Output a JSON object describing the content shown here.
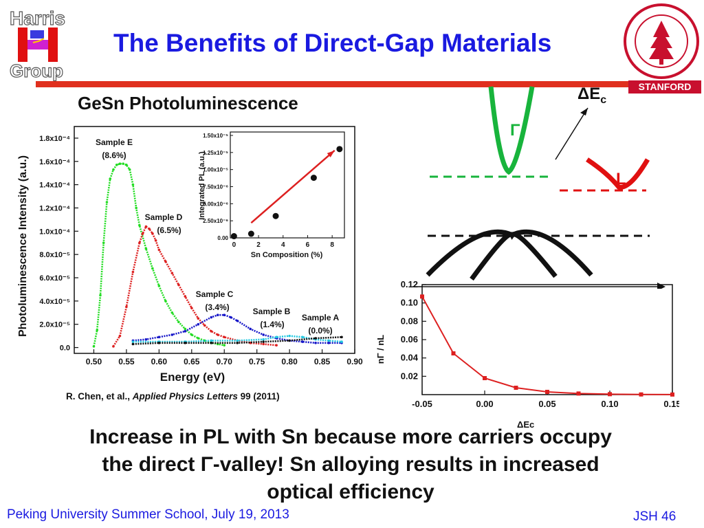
{
  "title": "The Benefits of Direct-Gap Materials",
  "subtitle": "GeSn Photoluminescence",
  "logos": {
    "harris": "Harris Group",
    "stanford_label": "STANFORD"
  },
  "citation": {
    "authors": "R. Chen, et al.,",
    "journal": "Applied Physics Letters",
    "rest": "99 (2011)"
  },
  "band_diagram": {
    "gamma_label": "Γ",
    "l_label": "L",
    "delta_label_main": "ΔE",
    "delta_label_sub": "c"
  },
  "conclusion": {
    "line1": "Increase in PL with Sn because more carriers occupy",
    "line2": "the direct Γ-valley! Sn alloying results in increased",
    "line3": "optical efficiency"
  },
  "footer": {
    "left": "Peking University Summer School, July 19, 2013",
    "right": "JSH 46"
  },
  "colors": {
    "title": "#1a1ae0",
    "rule": "#e0301e",
    "gamma": "#18b43c",
    "l_valley": "#e01010",
    "sampleE": "#22dd22",
    "sampleD": "#dd2020",
    "sampleC": "#1515c8",
    "sampleB": "#22c8e0",
    "sampleA": "#111111"
  },
  "chart_data": [
    {
      "type": "line",
      "xlabel": "Energy (eV)",
      "ylabel": "Photoluminescence Intensity (a.u.)",
      "xlim": [
        0.47,
        0.9
      ],
      "ylim": [
        -5e-06,
        0.00019
      ],
      "x_ticks": [
        0.5,
        0.55,
        0.6,
        0.65,
        0.7,
        0.75,
        0.8,
        0.85,
        0.9
      ],
      "x_tick_labels": [
        "0.50",
        "0.55",
        "0.60",
        "0.65",
        "0.70",
        "0.75",
        "0.80",
        "0.85",
        "0.90"
      ],
      "y_ticks": [
        0,
        2e-05,
        4e-05,
        6e-05,
        8e-05,
        0.0001,
        0.00012,
        0.00014,
        0.00016,
        0.00018
      ],
      "y_tick_labels": [
        "0.0",
        "2.0x10⁻⁵",
        "4.0x10⁻⁵",
        "6.0x10⁻⁵",
        "8.0x10⁻⁵",
        "1.0x10⁻⁴",
        "1.2x10⁻⁴",
        "1.4x10⁻⁴",
        "1.6x10⁻⁴",
        "1.8x10⁻⁴"
      ],
      "series": [
        {
          "name": "Sample E",
          "label": "(8.6%)",
          "color": "#22dd22",
          "x": [
            0.5,
            0.505,
            0.51,
            0.515,
            0.52,
            0.525,
            0.53,
            0.535,
            0.54,
            0.545,
            0.55,
            0.555,
            0.56,
            0.565,
            0.57,
            0.58,
            0.59,
            0.6,
            0.61,
            0.62,
            0.63,
            0.64,
            0.65,
            0.66,
            0.67,
            0.68,
            0.69,
            0.7
          ],
          "y": [
            1e-06,
            1.5e-05,
            4.5e-05,
            9e-05,
            0.000125,
            0.000145,
            0.000153,
            0.000157,
            0.000158,
            0.000158,
            0.000157,
            0.000153,
            0.00014,
            0.00012,
            0.000105,
            8.5e-05,
            6.8e-05,
            5.3e-05,
            4e-05,
            3e-05,
            2.2e-05,
            1.6e-05,
            1.1e-05,
            8e-06,
            6e-06,
            4e-06,
            3e-06,
            2e-06
          ]
        },
        {
          "name": "Sample D",
          "label": "(6.5%)",
          "color": "#dd2020",
          "x": [
            0.53,
            0.54,
            0.55,
            0.56,
            0.57,
            0.575,
            0.58,
            0.585,
            0.59,
            0.595,
            0.6,
            0.61,
            0.62,
            0.63,
            0.64,
            0.65,
            0.66,
            0.67,
            0.68,
            0.69,
            0.7,
            0.72,
            0.74,
            0.76,
            0.78
          ],
          "y": [
            1e-06,
            1e-05,
            3.5e-05,
            6.5e-05,
            9e-05,
            9.8e-05,
            0.000104,
            0.000102,
            9.8e-05,
            9.2e-05,
            8.4e-05,
            7.4e-05,
            6.4e-05,
            5.4e-05,
            4.4e-05,
            3.4e-05,
            2.5e-05,
            1.9e-05,
            1.4e-05,
            1.1e-05,
            9e-06,
            6e-06,
            4e-06,
            3e-06,
            2e-06
          ]
        },
        {
          "name": "Sample C",
          "label": "(3.4%)",
          "color": "#1515c8",
          "x": [
            0.56,
            0.58,
            0.6,
            0.62,
            0.64,
            0.66,
            0.68,
            0.69,
            0.7,
            0.71,
            0.72,
            0.74,
            0.76,
            0.78,
            0.8,
            0.82,
            0.84,
            0.86,
            0.88
          ],
          "y": [
            6e-06,
            7e-06,
            9e-06,
            1.1e-05,
            1.4e-05,
            2e-05,
            2.6e-05,
            2.8e-05,
            2.8e-05,
            2.6e-05,
            2.3e-05,
            1.6e-05,
            1.1e-05,
            8e-06,
            6e-06,
            5e-06,
            4e-06,
            4e-06,
            4e-06
          ]
        },
        {
          "name": "Sample B",
          "label": "(1.4%)",
          "color": "#22c8e0",
          "x": [
            0.56,
            0.6,
            0.64,
            0.68,
            0.72,
            0.76,
            0.78,
            0.8,
            0.82,
            0.84,
            0.86,
            0.88
          ],
          "y": [
            5e-06,
            5e-06,
            5e-06,
            6e-06,
            6e-06,
            7e-06,
            9e-06,
            1e-05,
            9e-06,
            7e-06,
            6e-06,
            5e-06
          ]
        },
        {
          "name": "Sample A",
          "label": "(0.0%)",
          "color": "#111111",
          "x": [
            0.56,
            0.6,
            0.64,
            0.68,
            0.72,
            0.76,
            0.8,
            0.84,
            0.88
          ],
          "y": [
            3e-06,
            4e-06,
            4e-06,
            4e-06,
            4e-06,
            5e-06,
            6e-06,
            8e-06,
            9e-06
          ]
        }
      ]
    },
    {
      "type": "scatter",
      "xlabel": "Sn Composition (%)",
      "ylabel": "Integrated PL (a.u.)",
      "xlim": [
        -0.3,
        9
      ],
      "ylim": [
        0,
        1.55e-05
      ],
      "x_ticks": [
        0,
        2,
        4,
        6,
        8
      ],
      "x_tick_labels": [
        "0",
        "2",
        "4",
        "6",
        "8"
      ],
      "y_ticks": [
        0,
        2.5e-06,
        5e-06,
        7.5e-06,
        1e-05,
        1.25e-05,
        1.5e-05
      ],
      "y_tick_labels": [
        "0.00",
        "2.50x10⁻⁶",
        "5.00x10⁻⁶",
        "7.50x10⁻⁶",
        "1.00x10⁻⁵",
        "1.25x10⁻⁵",
        "1.50x10⁻⁵"
      ],
      "x": [
        0.0,
        1.4,
        3.4,
        6.5,
        8.6
      ],
      "y": [
        2.5e-07,
        6e-07,
        3.2e-06,
        8.8e-06,
        1.3e-05
      ],
      "trend_arrow": {
        "x": [
          1.4,
          8.2
        ],
        "y": [
          2.2e-06,
          1.28e-05
        ]
      }
    },
    {
      "type": "line",
      "xlabel": "ΔEc",
      "ylabel": "nΓ / nL",
      "xlim": [
        -0.05,
        0.15
      ],
      "ylim": [
        0,
        0.12
      ],
      "x_ticks": [
        -0.05,
        0.0,
        0.05,
        0.1,
        0.15
      ],
      "x_tick_labels": [
        "-0.05",
        "0.00",
        "0.05",
        "0.10",
        "0.15"
      ],
      "y_ticks": [
        0.02,
        0.04,
        0.06,
        0.08,
        0.1,
        0.12
      ],
      "y_tick_labels": [
        "0.02",
        "0.04",
        "0.06",
        "0.08",
        "0.10",
        "0.12"
      ],
      "x": [
        -0.05,
        -0.025,
        0.0,
        0.025,
        0.05,
        0.075,
        0.1,
        0.125,
        0.15
      ],
      "y": [
        0.107,
        0.045,
        0.018,
        0.0075,
        0.003,
        0.0012,
        0.0005,
        0.0002,
        0.0001
      ]
    }
  ]
}
